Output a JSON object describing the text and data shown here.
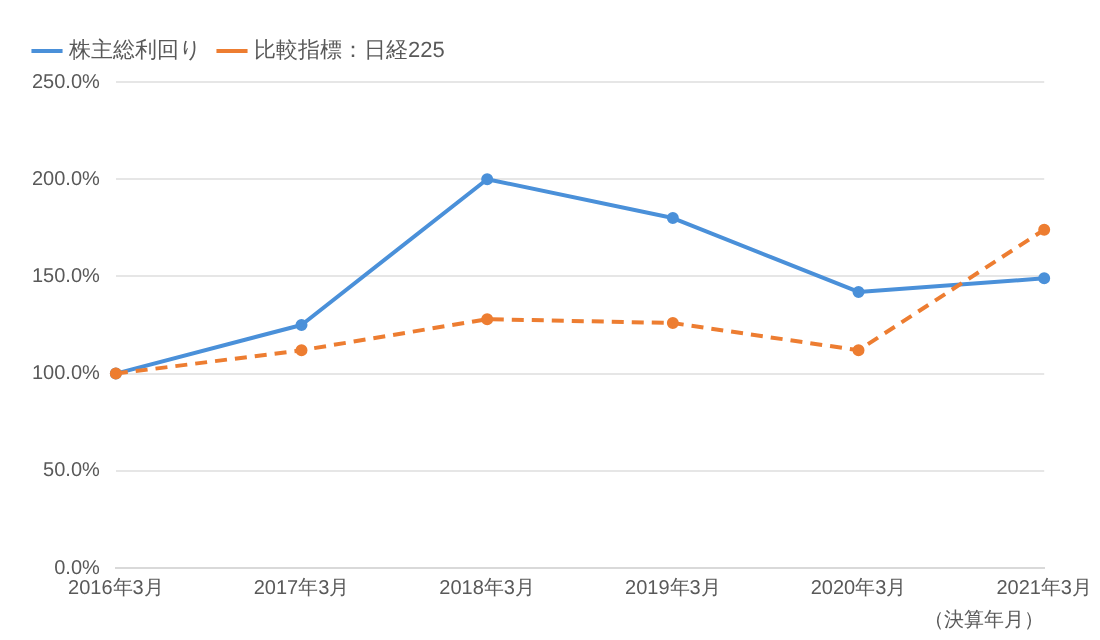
{
  "chart_data": {
    "type": "line",
    "categories": [
      "2016年3月",
      "2017年3月",
      "2018年3月",
      "2019年3月",
      "2020年3月",
      "2021年3月"
    ],
    "series": [
      {
        "name": "株主総利回り",
        "color": "#4a90d9",
        "values": [
          100,
          125,
          200,
          180,
          142,
          149
        ],
        "line_style": "solid"
      },
      {
        "name": "比較指標：日経225",
        "color": "#ed7d31",
        "values": [
          100,
          112,
          128,
          126,
          112,
          174
        ],
        "line_style": "dashed"
      }
    ],
    "xlabel": "（決算年月）",
    "ylim": [
      0,
      250
    ],
    "yticks": [
      {
        "value": 0,
        "label": "0.0%"
      },
      {
        "value": 50,
        "label": "50.0%"
      },
      {
        "value": 100,
        "label": "100.0%"
      },
      {
        "value": 150,
        "label": "150.0%"
      },
      {
        "value": 200,
        "label": "200.0%"
      },
      {
        "value": 250,
        "label": "250.0%"
      }
    ],
    "grid": "y",
    "legend": "top left",
    "marker": "circle"
  }
}
